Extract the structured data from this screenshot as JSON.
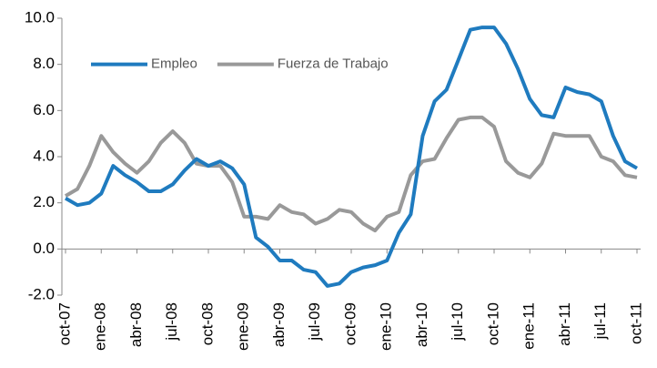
{
  "chart_data": {
    "type": "line",
    "categories": [
      "oct-07",
      null,
      null,
      "ene-08",
      null,
      null,
      "abr-08",
      null,
      null,
      "jul-08",
      null,
      null,
      "oct-08",
      null,
      null,
      "ene-09",
      null,
      null,
      "abr-09",
      null,
      null,
      "jul-09",
      null,
      null,
      "oct-09",
      null,
      null,
      "ene-10",
      null,
      null,
      "abr-10",
      null,
      null,
      "jul-10",
      null,
      null,
      "oct-10",
      null,
      null,
      "ene-11",
      null,
      null,
      "abr-11",
      null,
      null,
      "jul-11",
      null,
      null,
      "oct-11"
    ],
    "series": [
      {
        "name": "Empleo",
        "color": "#1f7bbf",
        "values": [
          2.2,
          1.9,
          2.0,
          2.4,
          3.6,
          3.2,
          2.9,
          2.5,
          2.5,
          2.8,
          3.4,
          3.9,
          3.6,
          3.8,
          3.5,
          2.8,
          0.5,
          0.1,
          -0.5,
          -0.5,
          -0.9,
          -1.0,
          -1.6,
          -1.5,
          -1.0,
          -0.8,
          -0.7,
          -0.5,
          0.7,
          1.5,
          4.9,
          6.4,
          6.9,
          8.2,
          9.5,
          9.6,
          9.6,
          8.9,
          7.8,
          6.5,
          5.8,
          5.7,
          7.0,
          6.8,
          6.7,
          6.4,
          4.9,
          3.8,
          3.5
        ]
      },
      {
        "name": "Fuerza de Trabajo",
        "color": "#999999",
        "values": [
          2.3,
          2.6,
          3.6,
          4.9,
          4.2,
          3.7,
          3.3,
          3.8,
          4.6,
          5.1,
          4.6,
          3.7,
          3.6,
          3.6,
          2.9,
          1.4,
          1.4,
          1.3,
          1.9,
          1.6,
          1.5,
          1.1,
          1.3,
          1.7,
          1.6,
          1.1,
          0.8,
          1.4,
          1.6,
          3.2,
          3.8,
          3.9,
          4.8,
          5.6,
          5.7,
          5.7,
          5.3,
          3.8,
          3.3,
          3.1,
          3.7,
          5.0,
          4.9,
          4.9,
          4.9,
          4.0,
          3.8,
          3.2,
          3.1
        ]
      }
    ],
    "ylim": [
      -2,
      10
    ],
    "yticks": [
      {
        "value": -2,
        "label": "-2.0"
      },
      {
        "value": 0,
        "label": "0.0"
      },
      {
        "value": 2,
        "label": "2.0"
      },
      {
        "value": 4,
        "label": "4.0"
      },
      {
        "value": 6,
        "label": "6.0"
      },
      {
        "value": 8,
        "label": "8.0"
      },
      {
        "value": 10,
        "label": "10.0"
      }
    ],
    "grid": false,
    "legend": "top-left"
  }
}
